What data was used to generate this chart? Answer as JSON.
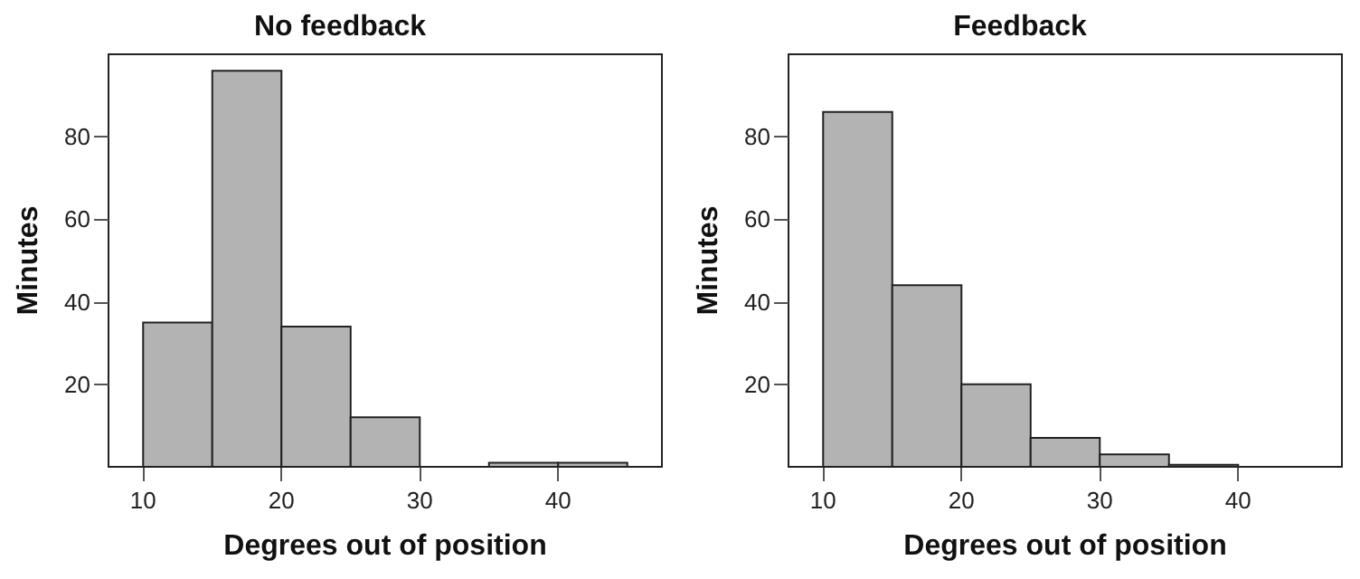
{
  "chart_data": [
    {
      "type": "histogram",
      "title": "No feedback",
      "xlabel": "Degrees out of position",
      "ylabel": "Minutes",
      "bins": [
        10,
        15,
        20,
        25,
        30,
        35,
        40,
        45
      ],
      "values": [
        35,
        96,
        34,
        12,
        0,
        1,
        1
      ],
      "color": "#b3b3b3",
      "xlim": [
        7.5,
        47.5
      ],
      "ylim": [
        0,
        100
      ],
      "xticks": [
        10,
        20,
        30,
        40
      ],
      "yticks": [
        20,
        40,
        60,
        80
      ],
      "grid": false
    },
    {
      "type": "histogram",
      "title": "Feedback",
      "xlabel": "Degrees out of position",
      "ylabel": "Minutes",
      "bins": [
        10,
        15,
        20,
        25,
        30,
        35,
        40
      ],
      "values": [
        86,
        44,
        20,
        7,
        3,
        0.5
      ],
      "color": "#b3b3b3",
      "xlim": [
        7.5,
        47.5
      ],
      "ylim": [
        0,
        100
      ],
      "xticks": [
        10,
        20,
        30,
        40
      ],
      "yticks": [
        20,
        40,
        60,
        80
      ],
      "grid": false
    }
  ]
}
